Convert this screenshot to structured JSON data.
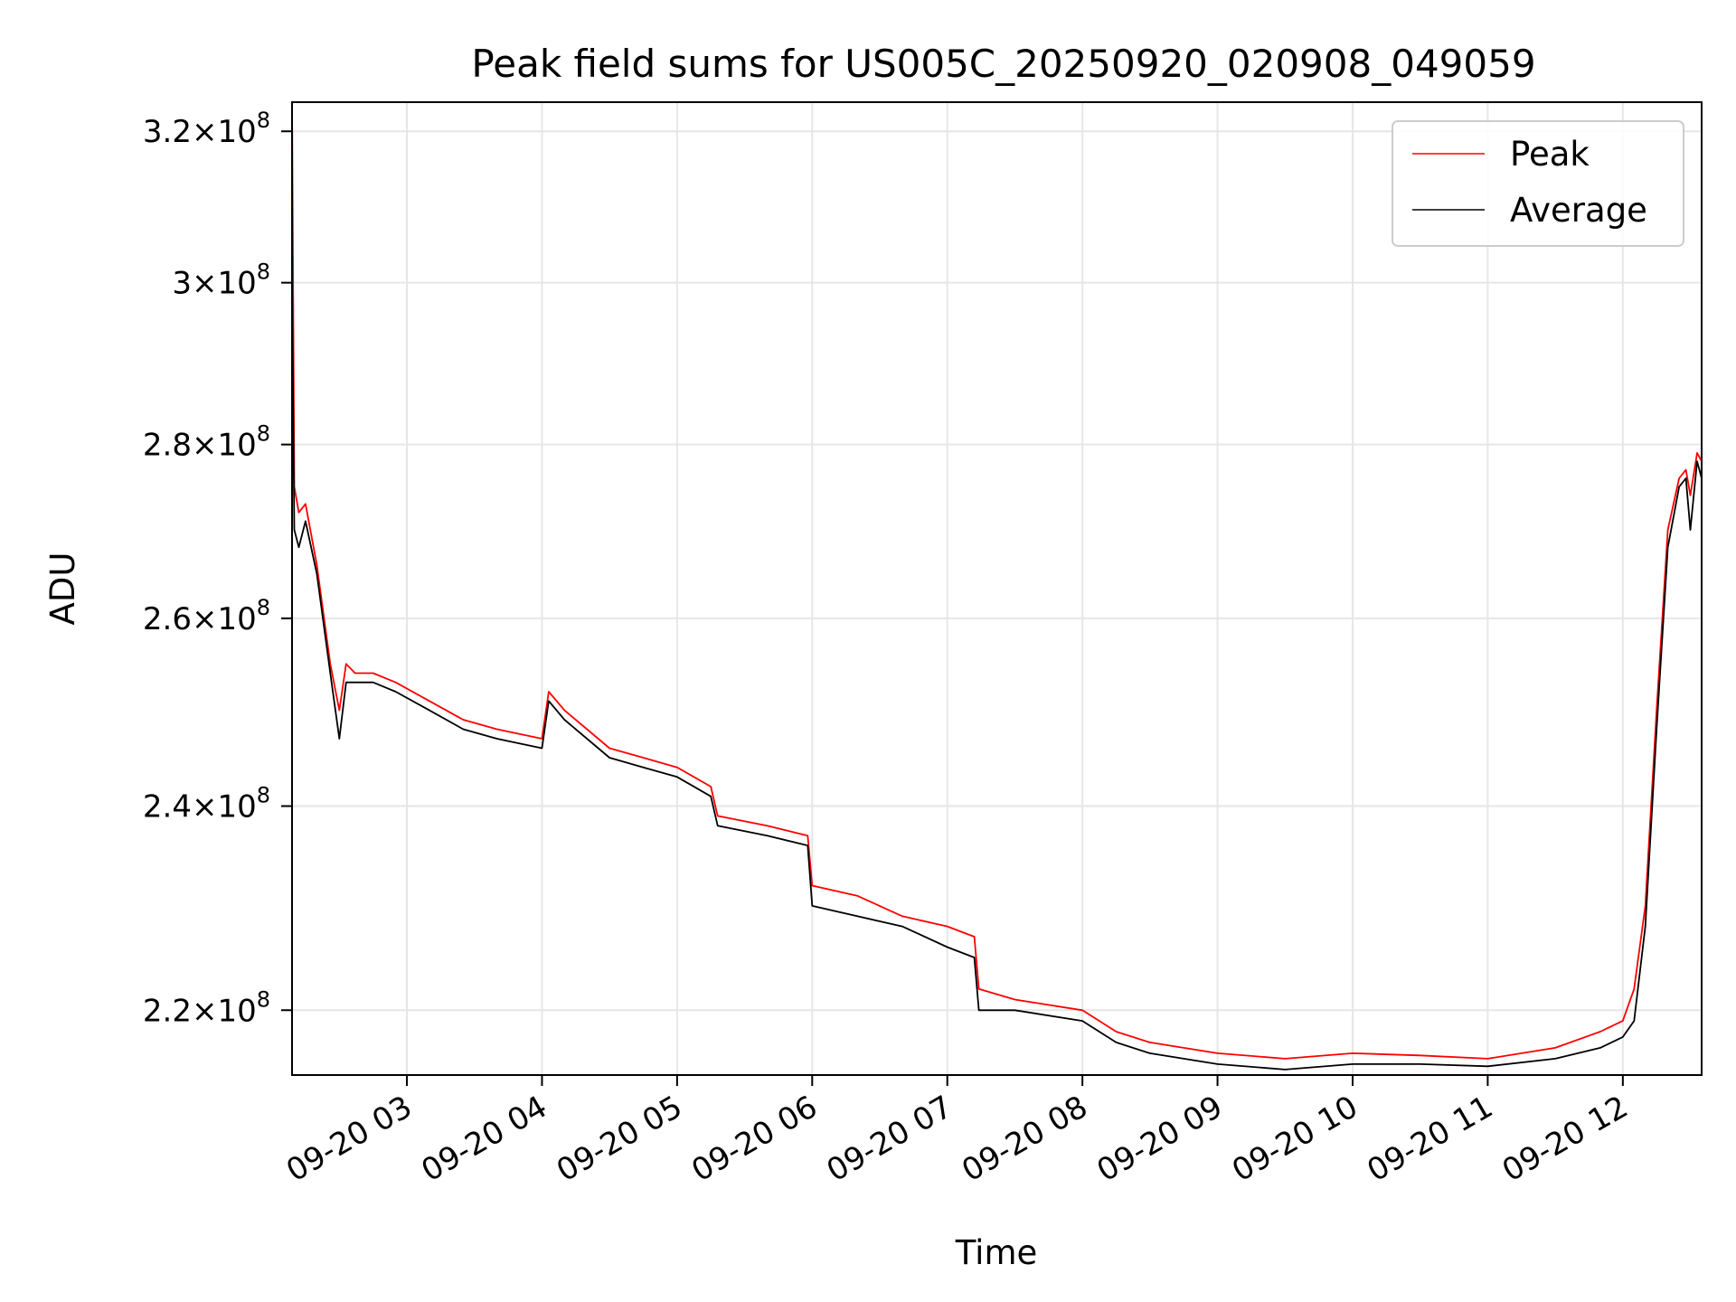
{
  "chart_data": {
    "type": "line",
    "title": "Peak field sums for US005C_20250920_020908_049059",
    "xlabel": "Time",
    "ylabel": "ADU",
    "y_scale": "log",
    "grid": true,
    "legend_position": "top-right",
    "x_range": [
      "2025-09-20 02:09",
      "2025-09-20 12:35"
    ],
    "ylim": [
      214000000,
      324000000
    ],
    "x_ticks": [
      "09-20 03",
      "09-20 04",
      "09-20 05",
      "09-20 06",
      "09-20 07",
      "09-20 08",
      "09-20 09",
      "09-20 10",
      "09-20 11",
      "09-20 12"
    ],
    "x_tick_times": [
      "2025-09-20 03:00",
      "2025-09-20 04:00",
      "2025-09-20 05:00",
      "2025-09-20 06:00",
      "2025-09-20 07:00",
      "2025-09-20 08:00",
      "2025-09-20 09:00",
      "2025-09-20 10:00",
      "2025-09-20 11:00",
      "2025-09-20 12:00"
    ],
    "y_ticks": [
      {
        "value": 220000000,
        "mantissa": "2.2",
        "exponent": "8"
      },
      {
        "value": 240000000,
        "mantissa": "2.4",
        "exponent": "8"
      },
      {
        "value": 260000000,
        "mantissa": "2.6",
        "exponent": "8"
      },
      {
        "value": 280000000,
        "mantissa": "2.8",
        "exponent": "8"
      },
      {
        "value": 300000000,
        "mantissa": "3",
        "exponent": "8"
      },
      {
        "value": 320000000,
        "mantissa": "3.2",
        "exponent": "8"
      }
    ],
    "times_x_mult": "×",
    "times_x_base": "10",
    "series": [
      {
        "name": "Peak",
        "color": "#ff0000",
        "x": [
          "2025-09-20 02:09",
          "2025-09-20 02:10",
          "2025-09-20 02:12",
          "2025-09-20 02:15",
          "2025-09-20 02:20",
          "2025-09-20 02:26",
          "2025-09-20 02:30",
          "2025-09-20 02:33",
          "2025-09-20 02:37",
          "2025-09-20 02:45",
          "2025-09-20 02:55",
          "2025-09-20 03:10",
          "2025-09-20 03:25",
          "2025-09-20 03:40",
          "2025-09-20 04:00",
          "2025-09-20 04:03",
          "2025-09-20 04:10",
          "2025-09-20 04:20",
          "2025-09-20 04:30",
          "2025-09-20 04:45",
          "2025-09-20 05:00",
          "2025-09-20 05:15",
          "2025-09-20 05:18",
          "2025-09-20 05:40",
          "2025-09-20 05:58",
          "2025-09-20 06:00",
          "2025-09-20 06:20",
          "2025-09-20 06:40",
          "2025-09-20 07:00",
          "2025-09-20 07:12",
          "2025-09-20 07:14",
          "2025-09-20 07:30",
          "2025-09-20 08:00",
          "2025-09-20 08:15",
          "2025-09-20 08:30",
          "2025-09-20 09:00",
          "2025-09-20 09:30",
          "2025-09-20 10:00",
          "2025-09-20 10:30",
          "2025-09-20 11:00",
          "2025-09-20 11:30",
          "2025-09-20 11:50",
          "2025-09-20 12:00",
          "2025-09-20 12:05",
          "2025-09-20 12:10",
          "2025-09-20 12:15",
          "2025-09-20 12:20",
          "2025-09-20 12:25",
          "2025-09-20 12:28",
          "2025-09-20 12:30",
          "2025-09-20 12:33",
          "2025-09-20 12:35"
        ],
        "values": [
          324000000,
          275000000,
          272000000,
          273000000,
          266000000,
          255000000,
          250000000,
          255000000,
          254000000,
          254000000,
          253000000,
          251000000,
          249000000,
          248000000,
          247000000,
          252000000,
          250000000,
          248000000,
          246000000,
          245000000,
          244000000,
          242000000,
          239000000,
          238000000,
          237000000,
          232000000,
          231000000,
          229000000,
          228000000,
          227000000,
          222000000,
          221000000,
          220000000,
          218000000,
          217000000,
          216000000,
          215500000,
          216000000,
          215800000,
          215500000,
          216500000,
          218000000,
          219000000,
          222000000,
          230000000,
          250000000,
          270000000,
          276000000,
          277000000,
          274000000,
          279000000,
          278000000
        ]
      },
      {
        "name": "Average",
        "color": "#000000",
        "x": [
          "2025-09-20 02:09",
          "2025-09-20 02:10",
          "2025-09-20 02:12",
          "2025-09-20 02:15",
          "2025-09-20 02:20",
          "2025-09-20 02:26",
          "2025-09-20 02:30",
          "2025-09-20 02:33",
          "2025-09-20 02:37",
          "2025-09-20 02:45",
          "2025-09-20 02:55",
          "2025-09-20 03:10",
          "2025-09-20 03:25",
          "2025-09-20 03:40",
          "2025-09-20 04:00",
          "2025-09-20 04:03",
          "2025-09-20 04:10",
          "2025-09-20 04:20",
          "2025-09-20 04:30",
          "2025-09-20 04:45",
          "2025-09-20 05:00",
          "2025-09-20 05:15",
          "2025-09-20 05:18",
          "2025-09-20 05:40",
          "2025-09-20 05:58",
          "2025-09-20 06:00",
          "2025-09-20 06:20",
          "2025-09-20 06:40",
          "2025-09-20 07:00",
          "2025-09-20 07:12",
          "2025-09-20 07:14",
          "2025-09-20 07:30",
          "2025-09-20 08:00",
          "2025-09-20 08:15",
          "2025-09-20 08:30",
          "2025-09-20 09:00",
          "2025-09-20 09:30",
          "2025-09-20 10:00",
          "2025-09-20 10:30",
          "2025-09-20 11:00",
          "2025-09-20 11:30",
          "2025-09-20 11:50",
          "2025-09-20 12:00",
          "2025-09-20 12:05",
          "2025-09-20 12:10",
          "2025-09-20 12:15",
          "2025-09-20 12:20",
          "2025-09-20 12:25",
          "2025-09-20 12:28",
          "2025-09-20 12:30",
          "2025-09-20 12:33",
          "2025-09-20 12:35"
        ],
        "values": [
          300000000,
          270000000,
          268000000,
          271000000,
          265000000,
          254000000,
          247000000,
          253000000,
          253000000,
          253000000,
          252000000,
          250000000,
          248000000,
          247000000,
          246000000,
          251000000,
          249000000,
          247000000,
          245000000,
          244000000,
          243000000,
          241000000,
          238000000,
          237000000,
          236000000,
          230000000,
          229000000,
          228000000,
          226000000,
          225000000,
          220000000,
          220000000,
          219000000,
          217000000,
          216000000,
          215000000,
          214500000,
          215000000,
          215000000,
          214800000,
          215500000,
          216500000,
          217500000,
          219000000,
          228000000,
          248000000,
          268000000,
          275000000,
          276000000,
          270000000,
          278000000,
          276000000
        ]
      }
    ]
  }
}
